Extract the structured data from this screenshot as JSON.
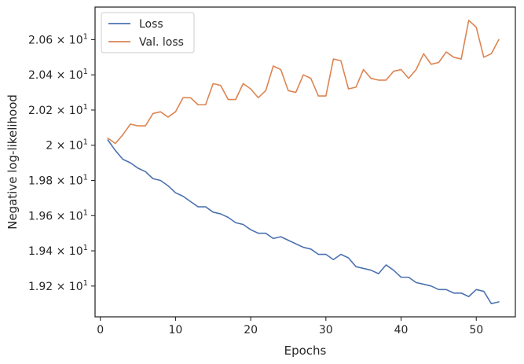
{
  "chart_data": {
    "type": "line",
    "xlabel": "Epochs",
    "ylabel": "Negative log-likelihood",
    "xlim": [
      -0.7,
      55.2
    ],
    "ylim": [
      19.025,
      20.785
    ],
    "x_ticks": [
      0,
      10,
      20,
      30,
      40,
      50
    ],
    "y_ticks": [
      {
        "value": 19.2,
        "mantissa": "1.92",
        "exp": "1"
      },
      {
        "value": 19.4,
        "mantissa": "1.94",
        "exp": "1"
      },
      {
        "value": 19.6,
        "mantissa": "1.96",
        "exp": "1"
      },
      {
        "value": 19.8,
        "mantissa": "1.98",
        "exp": "1"
      },
      {
        "value": 20.0,
        "mantissa": "2",
        "exp": "1"
      },
      {
        "value": 20.2,
        "mantissa": "2.02",
        "exp": "1"
      },
      {
        "value": 20.4,
        "mantissa": "2.04",
        "exp": "1"
      },
      {
        "value": 20.6,
        "mantissa": "2.06",
        "exp": "1"
      }
    ],
    "times_sign": "×",
    "exp_base": "10",
    "grid": false,
    "legend_position": "top-left",
    "x": [
      1,
      2,
      3,
      4,
      5,
      6,
      7,
      8,
      9,
      10,
      11,
      12,
      13,
      14,
      15,
      16,
      17,
      18,
      19,
      20,
      21,
      22,
      23,
      24,
      25,
      26,
      27,
      28,
      29,
      30,
      31,
      32,
      33,
      34,
      35,
      36,
      37,
      38,
      39,
      40,
      41,
      42,
      43,
      44,
      45,
      46,
      47,
      48,
      49,
      50,
      51,
      52,
      53
    ],
    "series": [
      {
        "name": "Loss",
        "color": "#4c72b0",
        "values": [
          20.03,
          19.97,
          19.92,
          19.9,
          19.87,
          19.85,
          19.81,
          19.8,
          19.77,
          19.73,
          19.71,
          19.68,
          19.65,
          19.65,
          19.62,
          19.61,
          19.59,
          19.56,
          19.55,
          19.52,
          19.5,
          19.5,
          19.47,
          19.48,
          19.46,
          19.44,
          19.42,
          19.41,
          19.38,
          19.38,
          19.35,
          19.38,
          19.36,
          19.31,
          19.3,
          19.29,
          19.27,
          19.32,
          19.29,
          19.25,
          19.25,
          19.22,
          19.21,
          19.2,
          19.18,
          19.18,
          19.16,
          19.16,
          19.14,
          19.18,
          19.17,
          19.1,
          19.11
        ]
      },
      {
        "name": "Val. loss",
        "color": "#dd8452",
        "values": [
          20.04,
          20.01,
          20.06,
          20.12,
          20.11,
          20.11,
          20.18,
          20.19,
          20.16,
          20.19,
          20.27,
          20.27,
          20.23,
          20.23,
          20.35,
          20.34,
          20.26,
          20.26,
          20.35,
          20.32,
          20.27,
          20.31,
          20.45,
          20.43,
          20.31,
          20.3,
          20.4,
          20.38,
          20.28,
          20.28,
          20.49,
          20.48,
          20.32,
          20.33,
          20.43,
          20.38,
          20.37,
          20.37,
          20.42,
          20.43,
          20.38,
          20.43,
          20.52,
          20.46,
          20.47,
          20.53,
          20.5,
          20.49,
          20.71,
          20.67,
          20.5,
          20.52,
          20.6
        ]
      }
    ]
  }
}
